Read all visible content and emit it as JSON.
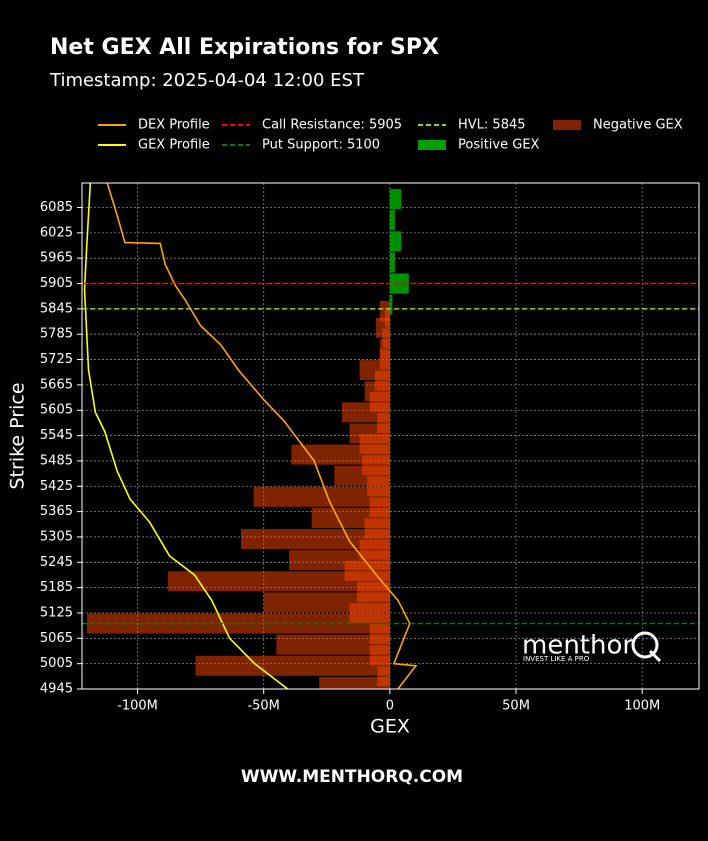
{
  "chart_data": {
    "type": "gex-profile",
    "title": "Net GEX All Expirations for SPX",
    "subtitle": "Timestamp: 2025-04-04 12:00 EST",
    "xlabel": "GEX",
    "ylabel": "Strike Price",
    "xlim": [
      -122000000,
      122500000
    ],
    "xticks": [
      {
        "value": -100000000,
        "label": "-100M"
      },
      {
        "value": -50000000,
        "label": "-50M"
      },
      0,
      {
        "value": 50000000,
        "label": "50M"
      },
      {
        "value": 100000000,
        "label": "100M"
      }
    ],
    "ylim": [
      4945,
      6143
    ],
    "yticks": [
      4945,
      5005,
      5065,
      5125,
      5185,
      5245,
      5305,
      5365,
      5425,
      5485,
      5545,
      5605,
      5665,
      5725,
      5785,
      5845,
      5905,
      5965,
      6025,
      6085
    ],
    "grid": true,
    "lines": [
      {
        "name": "DEX Profile",
        "color": "#ffa500",
        "strikes": [
          4945,
          5000,
          5005,
          5100,
          5155,
          5205,
          5295,
          5390,
          5485,
          5580,
          5630,
          5700,
          5760,
          5805,
          5865,
          5900,
          5950,
          6000,
          6002,
          6065,
          6143
        ],
        "values": [
          3200000,
          10300000,
          1600000,
          7900000,
          3200000,
          -4000000,
          -16000000,
          -24000000,
          -30000000,
          -42000000,
          -50000000,
          -60000000,
          -67000000,
          -75000000,
          -81000000,
          -85000000,
          -89000000,
          -91000000,
          -105000000,
          -108000000,
          -112000000
        ]
      },
      {
        "name": "GEX Profile",
        "color": "#ffff00",
        "strikes": [
          4945,
          5005,
          5065,
          5155,
          5215,
          5260,
          5340,
          5395,
          5460,
          5555,
          5600,
          5700,
          5795,
          5890,
          5985,
          6143
        ],
        "values": [
          -40500000,
          -53600000,
          -63500000,
          -70600000,
          -77400000,
          -87300000,
          -95200000,
          -103000000,
          -108000000,
          -113000000,
          -116700000,
          -119400000,
          -120200000,
          -121000000,
          -120200000,
          -118700000
        ]
      }
    ],
    "levels": [
      {
        "name": "Call Resistance: 5905",
        "value": 5905,
        "color": "#ff0000"
      },
      {
        "name": "Put Support: 5100",
        "value": 5100,
        "color": "#008000"
      },
      {
        "name": "HVL: 5845",
        "value": 5845,
        "color": "#9acd32"
      }
    ],
    "bars": [
      {
        "name": "Positive GEX",
        "color": "#00a000",
        "strikes": [
          5855,
          5905,
          5955,
          6005,
          6055,
          6105
        ],
        "values": [
          1000000,
          7500000,
          2000000,
          4500000,
          2000000,
          4500000
        ]
      },
      {
        "name": "Negative GEX",
        "color": "#ff4500",
        "strikes": [
          4950,
          4975,
          5000,
          5025,
          5050,
          5075,
          5100,
          5125,
          5150,
          5175,
          5200,
          5225,
          5250,
          5275,
          5300,
          5325,
          5350,
          5375,
          5400,
          5425,
          5450,
          5475,
          5500,
          5525,
          5550,
          5575,
          5600,
          5625,
          5650,
          5675,
          5700,
          5725,
          5750,
          5775,
          5800,
          5825,
          5840
        ],
        "values": [
          -28000000,
          -5000000,
          -77000000,
          -8000000,
          -45000000,
          -8000000,
          -120000000,
          -16000000,
          -50000000,
          -13000000,
          -88000000,
          -18000000,
          -40000000,
          -12000000,
          -59000000,
          -10000000,
          -31000000,
          -8000000,
          -54000000,
          -9000000,
          -22000000,
          -11000000,
          -39000000,
          -12000000,
          -16000000,
          -5000000,
          -19000000,
          -8000000,
          -10000000,
          -6000000,
          -12000000,
          -4000000,
          -4000000,
          -3000000,
          -5500000,
          -2000000,
          -4000000
        ]
      }
    ],
    "logo": {
      "name": "menthor",
      "tagline": "INVEST LIKE A PRO"
    },
    "footer": "WWW.MENTHORQ.COM"
  }
}
